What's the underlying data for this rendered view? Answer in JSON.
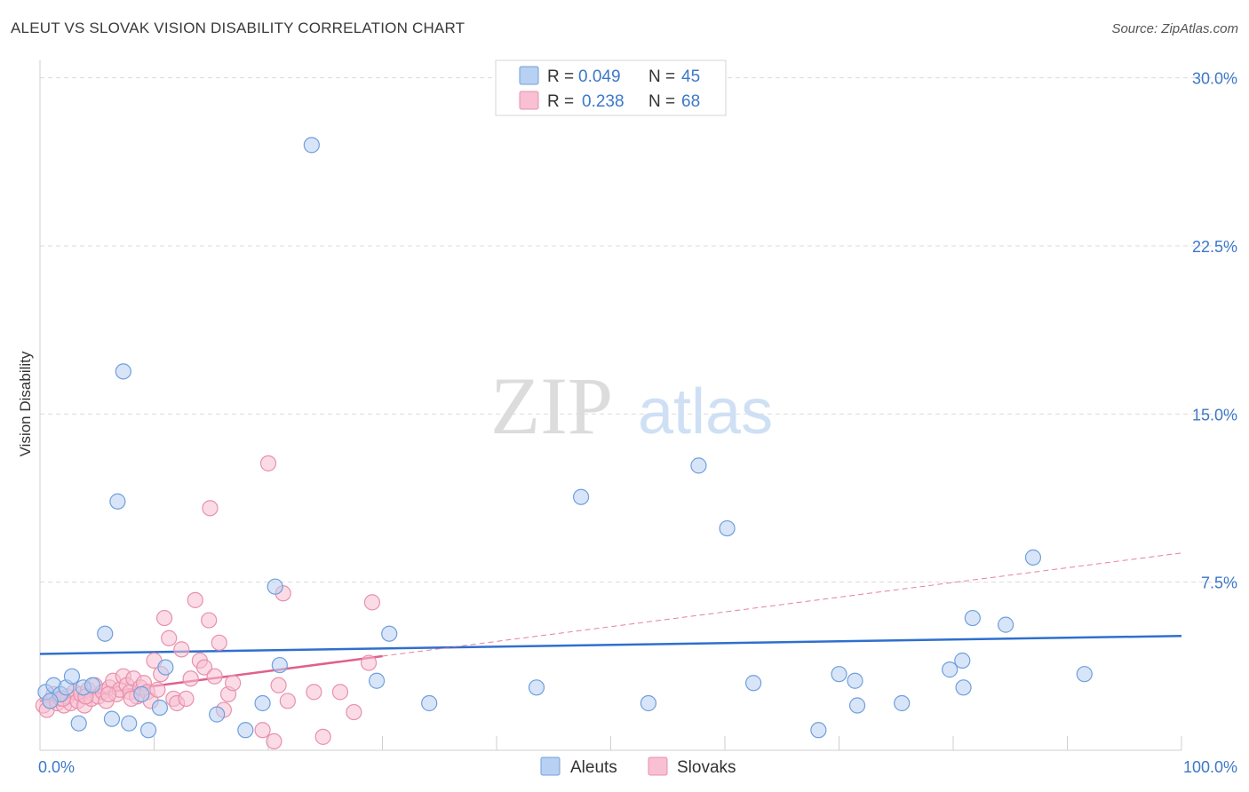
{
  "title": "ALEUT VS SLOVAK VISION DISABILITY CORRELATION CHART",
  "source": "Source: ZipAtlas.com",
  "watermark": {
    "zip": "ZIP",
    "atlas": "atlas"
  },
  "colors": {
    "aleut_fill": "#b8d0f2",
    "aleut_stroke": "#6f9fdc",
    "aleut_line": "#2f6fce",
    "slovak_fill": "#f8c0d2",
    "slovak_stroke": "#e890ac",
    "slovak_line": "#e0608c",
    "grid": "#dcdcdc",
    "tick_text": "#3c78c8"
  },
  "legend": {
    "rows": [
      {
        "r_label": "R =",
        "r_value": "0.049",
        "n_label": "N =",
        "n_value": "45"
      },
      {
        "r_label": "R =",
        "r_value": "0.238",
        "n_label": "N =",
        "n_value": "68"
      }
    ]
  },
  "bottom_legend": [
    "Aleuts",
    "Slovaks"
  ],
  "chart_data": {
    "type": "scatter",
    "xlabel": "",
    "ylabel": "Vision Disability",
    "xlim": [
      0,
      100
    ],
    "ylim": [
      0,
      30.5
    ],
    "x_tick_labels": [
      "0.0%",
      "100.0%"
    ],
    "y_ticks": [
      7.5,
      15.0,
      22.5,
      30.0
    ],
    "y_tick_labels": [
      "7.5%",
      "15.0%",
      "22.5%",
      "30.0%"
    ],
    "series": [
      {
        "name": "Aleuts",
        "r": 0.049,
        "n": 45,
        "trend": {
          "x": [
            0,
            100
          ],
          "y": [
            4.3,
            5.1
          ],
          "dashed_extension": false
        },
        "points": [
          [
            0.5,
            2.6
          ],
          [
            1.2,
            2.9
          ],
          [
            1.8,
            2.5
          ],
          [
            2.3,
            2.8
          ],
          [
            2.8,
            3.3
          ],
          [
            3.4,
            1.2
          ],
          [
            3.8,
            2.8
          ],
          [
            4.6,
            2.9
          ],
          [
            5.7,
            5.2
          ],
          [
            6.3,
            1.4
          ],
          [
            6.8,
            11.1
          ],
          [
            7.3,
            16.9
          ],
          [
            7.8,
            1.2
          ],
          [
            8.9,
            2.5
          ],
          [
            9.5,
            0.9
          ],
          [
            10.5,
            1.9
          ],
          [
            11.0,
            3.7
          ],
          [
            15.5,
            1.6
          ],
          [
            18.0,
            0.9
          ],
          [
            19.5,
            2.1
          ],
          [
            20.6,
            7.3
          ],
          [
            21.0,
            3.8
          ],
          [
            23.8,
            27.0
          ],
          [
            29.5,
            3.1
          ],
          [
            30.6,
            5.2
          ],
          [
            34.1,
            2.1
          ],
          [
            43.5,
            2.8
          ],
          [
            47.4,
            11.3
          ],
          [
            53.3,
            2.1
          ],
          [
            57.7,
            12.7
          ],
          [
            62.5,
            3.0
          ],
          [
            60.2,
            9.9
          ],
          [
            68.2,
            0.9
          ],
          [
            70.0,
            3.4
          ],
          [
            71.4,
            3.1
          ],
          [
            71.6,
            2.0
          ],
          [
            75.5,
            2.1
          ],
          [
            79.7,
            3.6
          ],
          [
            80.8,
            4.0
          ],
          [
            80.9,
            2.8
          ],
          [
            81.7,
            5.9
          ],
          [
            84.6,
            5.6
          ],
          [
            87.0,
            8.6
          ],
          [
            91.5,
            3.4
          ],
          [
            0.9,
            2.2
          ]
        ]
      },
      {
        "name": "Slovaks",
        "r": 0.238,
        "n": 68,
        "trend": {
          "x": [
            0,
            30
          ],
          "y": [
            2.2,
            4.2
          ],
          "dashed_extension": true,
          "dash_to": {
            "x": 100,
            "y": 8.8
          }
        },
        "points": [
          [
            0.3,
            2.0
          ],
          [
            0.6,
            1.8
          ],
          [
            0.9,
            2.2
          ],
          [
            1.2,
            2.5
          ],
          [
            1.5,
            2.1
          ],
          [
            1.8,
            2.3
          ],
          [
            2.1,
            2.0
          ],
          [
            2.4,
            2.4
          ],
          [
            2.7,
            2.1
          ],
          [
            3.0,
            2.6
          ],
          [
            3.3,
            2.2
          ],
          [
            3.6,
            2.5
          ],
          [
            3.9,
            2.0
          ],
          [
            4.2,
            2.7
          ],
          [
            4.5,
            2.3
          ],
          [
            4.8,
            2.9
          ],
          [
            5.1,
            2.4
          ],
          [
            5.5,
            2.6
          ],
          [
            5.8,
            2.2
          ],
          [
            6.1,
            2.8
          ],
          [
            6.4,
            3.1
          ],
          [
            6.7,
            2.5
          ],
          [
            7.0,
            2.7
          ],
          [
            7.3,
            3.3
          ],
          [
            7.6,
            2.9
          ],
          [
            7.9,
            2.6
          ],
          [
            8.2,
            3.2
          ],
          [
            8.5,
            2.4
          ],
          [
            8.8,
            2.8
          ],
          [
            9.1,
            3.0
          ],
          [
            9.4,
            2.6
          ],
          [
            9.7,
            2.2
          ],
          [
            10.0,
            4.0
          ],
          [
            10.3,
            2.7
          ],
          [
            10.6,
            3.4
          ],
          [
            10.9,
            5.9
          ],
          [
            11.3,
            5.0
          ],
          [
            11.7,
            2.3
          ],
          [
            12.0,
            2.1
          ],
          [
            12.4,
            4.5
          ],
          [
            12.8,
            2.3
          ],
          [
            13.2,
            3.2
          ],
          [
            13.6,
            6.7
          ],
          [
            14.0,
            4.0
          ],
          [
            14.4,
            3.7
          ],
          [
            14.8,
            5.8
          ],
          [
            14.9,
            10.8
          ],
          [
            15.3,
            3.3
          ],
          [
            15.7,
            4.8
          ],
          [
            16.1,
            1.8
          ],
          [
            16.5,
            2.5
          ],
          [
            16.9,
            3.0
          ],
          [
            19.5,
            0.9
          ],
          [
            20.0,
            12.8
          ],
          [
            20.5,
            0.4
          ],
          [
            20.9,
            2.9
          ],
          [
            21.3,
            7.0
          ],
          [
            21.7,
            2.2
          ],
          [
            24.0,
            2.6
          ],
          [
            24.8,
            0.6
          ],
          [
            26.3,
            2.6
          ],
          [
            27.5,
            1.7
          ],
          [
            28.8,
            3.9
          ],
          [
            29.1,
            6.6
          ],
          [
            2.0,
            2.3
          ],
          [
            4.0,
            2.4
          ],
          [
            6.0,
            2.5
          ],
          [
            8.0,
            2.3
          ]
        ]
      }
    ]
  }
}
